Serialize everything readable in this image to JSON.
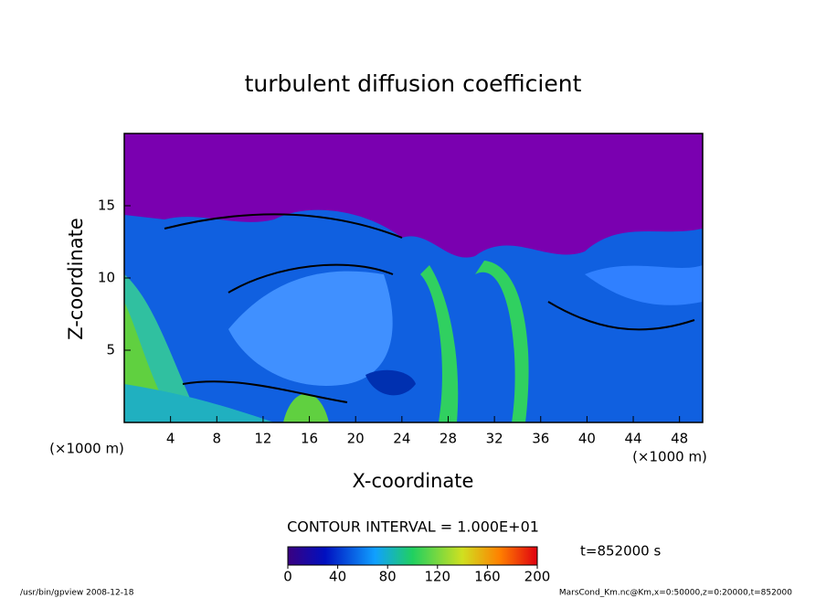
{
  "chart_data": {
    "type": "contour",
    "title": "turbulent diffusion coefficient",
    "xlabel": "X-coordinate",
    "ylabel": "Z-coordinate",
    "x_unit": "(×1000 m)",
    "y_unit": "(×1000 m)",
    "xlim": [
      0,
      50
    ],
    "xticks": [
      4,
      8,
      12,
      16,
      20,
      24,
      28,
      32,
      36,
      40,
      44,
      48
    ],
    "ylim": [
      0,
      20
    ],
    "yticks": [
      5,
      10,
      15
    ],
    "contour_interval": "CONTOUR INTERVAL = 1.000E+01",
    "colorbar": {
      "lim": [
        0,
        200
      ],
      "ticks": [
        0,
        40,
        80,
        120,
        160,
        200
      ]
    },
    "time": "t=852000 s",
    "footer_left": "/usr/bin/gpview  2008-12-18",
    "footer_right": "MarsCond_Km.nc@Km,x=0:50000,z=0:20000,t=852000"
  }
}
